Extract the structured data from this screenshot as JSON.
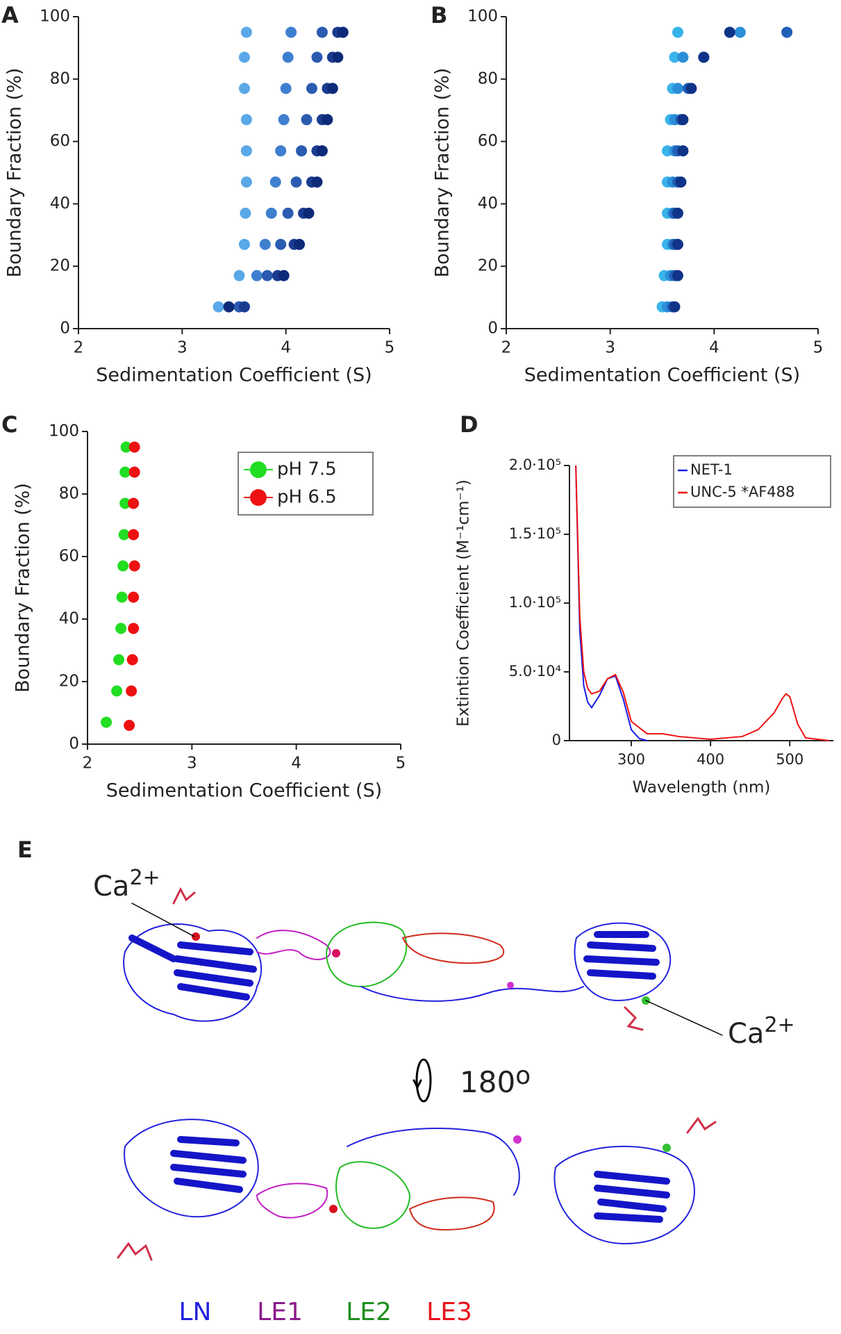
{
  "chart_data": [
    {
      "type": "scatter",
      "panel": "A",
      "xlabel": "Sedimentation Coefficient (S)",
      "ylabel": "Boundary Fraction (%)",
      "xlim": [
        2,
        5
      ],
      "xticks": [
        2,
        3,
        4,
        5
      ],
      "ylim": [
        0,
        100
      ],
      "yticks": [
        0,
        20,
        40,
        60,
        80,
        100
      ],
      "series": [
        {
          "color": "#5aa8e8",
          "x": [
            3.35,
            3.55,
            3.6,
            3.61,
            3.62,
            3.62,
            3.62,
            3.6,
            3.6,
            3.62
          ],
          "values": [
            7,
            17,
            27,
            37,
            47,
            57,
            67,
            77,
            87,
            95
          ]
        },
        {
          "color": "#3f7fcf",
          "x": [
            3.55,
            3.72,
            3.8,
            3.86,
            3.9,
            3.95,
            3.98,
            4.0,
            4.02,
            4.05
          ],
          "values": [
            7,
            17,
            27,
            37,
            47,
            57,
            67,
            77,
            87,
            95
          ]
        },
        {
          "color": "#2a5bb0",
          "x": [
            3.55,
            3.82,
            3.95,
            4.02,
            4.1,
            4.15,
            4.2,
            4.25,
            4.3,
            4.35
          ],
          "values": [
            7,
            17,
            27,
            37,
            47,
            57,
            67,
            77,
            87,
            95
          ]
        },
        {
          "color": "#1a3c90",
          "x": [
            3.6,
            3.92,
            4.08,
            4.17,
            4.25,
            4.3,
            4.35,
            4.4,
            4.45,
            4.5
          ],
          "values": [
            7,
            17,
            27,
            37,
            47,
            57,
            67,
            77,
            87,
            95
          ]
        },
        {
          "color": "#0d2a78",
          "x": [
            3.45,
            3.98,
            4.13,
            4.22,
            4.3,
            4.35,
            4.4,
            4.45,
            4.5,
            4.55
          ],
          "values": [
            7,
            17,
            27,
            37,
            47,
            57,
            67,
            77,
            87,
            95
          ]
        }
      ]
    },
    {
      "type": "scatter",
      "panel": "B",
      "xlabel": "Sedimentation Coefficient (S)",
      "ylabel": "Boundary Fraction (%)",
      "xlim": [
        2,
        5
      ],
      "xticks": [
        2,
        3,
        4,
        5
      ],
      "ylim": [
        0,
        100
      ],
      "yticks": [
        0,
        20,
        40,
        60,
        80,
        100
      ],
      "series": [
        {
          "color": "#39b4ea",
          "x": [
            3.5,
            3.52,
            3.55,
            3.55,
            3.55,
            3.55,
            3.58,
            3.6,
            3.62,
            3.65
          ],
          "values": [
            7,
            17,
            27,
            37,
            47,
            57,
            67,
            77,
            87,
            95
          ]
        },
        {
          "color": "#2a8fd8",
          "x": [
            3.55,
            3.58,
            3.6,
            3.6,
            3.6,
            3.62,
            3.62,
            3.65,
            3.7,
            4.25
          ],
          "values": [
            7,
            17,
            27,
            37,
            47,
            57,
            67,
            77,
            87,
            95
          ]
        },
        {
          "color": "#1f5fb8",
          "x": [
            3.6,
            3.62,
            3.62,
            3.62,
            3.65,
            3.65,
            3.68,
            3.75,
            3.9,
            4.7
          ],
          "values": [
            7,
            17,
            27,
            37,
            47,
            57,
            67,
            77,
            87,
            95
          ]
        },
        {
          "color": "#0f3487",
          "x": [
            3.62,
            3.65,
            3.65,
            3.65,
            3.68,
            3.7,
            3.7,
            3.78,
            3.9,
            4.15
          ],
          "values": [
            7,
            17,
            27,
            37,
            47,
            57,
            67,
            77,
            87,
            95
          ]
        }
      ]
    },
    {
      "type": "scatter",
      "panel": "C",
      "xlabel": "Sedimentation Coefficient (S)",
      "ylabel": "Boundary Fraction (%)",
      "xlim": [
        2,
        5
      ],
      "xticks": [
        2,
        3,
        4,
        5
      ],
      "ylim": [
        0,
        100
      ],
      "yticks": [
        0,
        20,
        40,
        60,
        80,
        100
      ],
      "legend": "upper right",
      "series": [
        {
          "name": "pH 7.5",
          "color": "#22dd22",
          "x": [
            2.18,
            2.28,
            2.3,
            2.32,
            2.33,
            2.34,
            2.35,
            2.36,
            2.36,
            2.37
          ],
          "values": [
            7,
            17,
            27,
            37,
            47,
            57,
            67,
            77,
            87,
            95
          ]
        },
        {
          "name": "pH 6.5",
          "color": "#ee1111",
          "x": [
            2.4,
            2.42,
            2.43,
            2.44,
            2.44,
            2.45,
            2.44,
            2.44,
            2.45,
            2.45
          ],
          "values": [
            6,
            17,
            27,
            37,
            47,
            57,
            67,
            77,
            87,
            95
          ]
        }
      ]
    },
    {
      "type": "line",
      "panel": "D",
      "xlabel": "Wavelength (nm)",
      "ylabel": "Extintion Coefficient (M⁻¹cm⁻¹)",
      "xlim": [
        222,
        555
      ],
      "xticks": [
        300,
        400,
        500
      ],
      "ylim": [
        0,
        200000
      ],
      "yticks": [
        0,
        {
          "value": 50000,
          "label": "5.0·10⁴"
        },
        {
          "value": 100000,
          "label": "1.0·10⁵"
        },
        {
          "value": 150000,
          "label": "1.5·10⁵"
        },
        {
          "value": 200000,
          "label": "2.0·10⁵"
        }
      ],
      "legend": "upper right",
      "series": [
        {
          "name": "NET-1",
          "color": "#1a1ae6",
          "x": [
            230,
            235,
            240,
            245,
            250,
            260,
            270,
            280,
            290,
            300,
            310,
            320
          ],
          "values": [
            200000,
            80000,
            40000,
            28000,
            24000,
            33000,
            45000,
            47000,
            30000,
            8000,
            1500,
            0
          ]
        },
        {
          "name": "UNC-5 *AF488",
          "color": "#ee1111",
          "x": [
            230,
            235,
            240,
            245,
            250,
            260,
            270,
            280,
            290,
            300,
            320,
            340,
            360,
            400,
            440,
            460,
            480,
            490,
            495,
            500,
            510,
            520,
            550
          ],
          "values": [
            200000,
            90000,
            50000,
            38000,
            34000,
            36000,
            45000,
            48000,
            35000,
            14000,
            5000,
            5000,
            3000,
            1000,
            3000,
            8000,
            20000,
            30000,
            34000,
            32000,
            12000,
            2000,
            0
          ]
        }
      ]
    }
  ],
  "structure": {
    "panel": "E",
    "annotations": [
      {
        "base": "Ca",
        "sup": "2+"
      },
      {
        "base": "Ca",
        "sup": "2+"
      }
    ],
    "rotation": {
      "base": "180",
      "sup": "o"
    },
    "domains": [
      {
        "label": "LN",
        "color": "#2222dd"
      },
      {
        "label": "LE1",
        "color": "#8b1a8b"
      },
      {
        "label": "LE2",
        "color": "#1f8f1f"
      },
      {
        "label": "LE3",
        "color": "#e8101b"
      }
    ]
  }
}
